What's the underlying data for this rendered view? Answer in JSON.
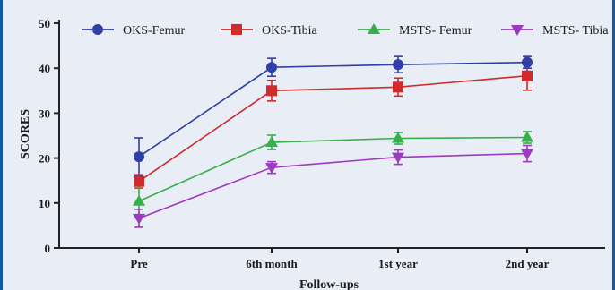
{
  "chart_data": {
    "type": "line",
    "title": "",
    "xlabel": "Follow-ups",
    "ylabel": "SCORES",
    "categories": [
      "Pre",
      "6th month",
      "1st year",
      "2nd year"
    ],
    "ylim": [
      0,
      50
    ],
    "yticks": [
      0,
      10,
      20,
      30,
      40,
      50
    ],
    "grid": false,
    "legend_position": "top",
    "error_bars": true,
    "series": [
      {
        "name": "OKS-Femur",
        "marker": "circle",
        "color": "#2f3fa8",
        "values": [
          20.3,
          40.2,
          40.8,
          41.3
        ],
        "err": [
          4.2,
          2.0,
          1.8,
          1.3
        ]
      },
      {
        "name": "OKS-Tibia",
        "marker": "square",
        "color": "#d12a2a",
        "values": [
          14.8,
          35.0,
          35.8,
          38.3
        ],
        "err": [
          1.5,
          2.3,
          2.0,
          3.2
        ]
      },
      {
        "name": "MSTS- Femur",
        "marker": "triangle-up",
        "color": "#35b04a",
        "values": [
          10.4,
          23.5,
          24.4,
          24.6
        ],
        "err": [
          3.0,
          1.6,
          1.3,
          1.3
        ]
      },
      {
        "name": "MSTS- Tibia",
        "marker": "triangle-down",
        "color": "#9c3bc1",
        "values": [
          6.6,
          17.9,
          20.2,
          21.0
        ],
        "err": [
          2.0,
          1.3,
          1.6,
          1.8
        ]
      }
    ]
  }
}
